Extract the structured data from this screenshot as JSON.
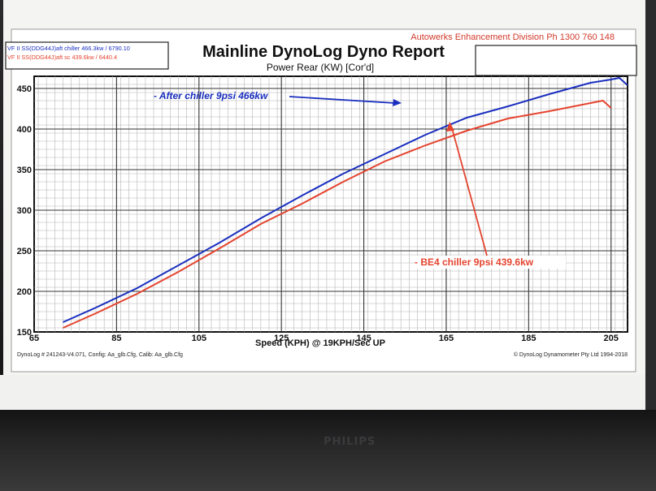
{
  "header": {
    "company": "Autowerks Enhancement Division  Ph 1300 760 148",
    "title": "Mainline DynoLog Dyno Report",
    "subtitle": "Power Rear (KW) [Cor'd]"
  },
  "legend_box": [
    {
      "text": "VF II SS(DDG44J)aft chiller 466.3kw / 6790.10",
      "color": "#1a2fbf"
    },
    {
      "text": "VF II SS(DDG44J)aft sc 439.6kw / 6440.4",
      "color": "#e4442f"
    }
  ],
  "footer": {
    "left": "DynoLog # 241243-V4.071, Config: Aa_glb.Cfg, Calib: Aa_glb.Cfg",
    "right": "© DynoLog Dynamometer Pty Ltd 1994-2018"
  },
  "monitor": {
    "brand": "PHILIPS"
  },
  "chart_data": {
    "type": "line",
    "title": "Mainline DynoLog Dyno Report",
    "subtitle": "Power Rear (KW) [Cor'd]",
    "xlabel": "Speed (KPH) @ 19KPH/Sec UP",
    "ylabel": "",
    "xlim": [
      65,
      209
    ],
    "ylim": [
      150,
      465
    ],
    "xticks": [
      "65",
      "85",
      "105",
      "125",
      "145",
      "165",
      "185",
      "205"
    ],
    "yticks": [
      "150",
      "200",
      "250",
      "300",
      "350",
      "400",
      "450"
    ],
    "grid": true,
    "series": [
      {
        "name": "VF II SS(DDG44J)aft chiller 466.3kw / 6790.10",
        "color": "#1a2fbf",
        "x": [
          72,
          80,
          90,
          100,
          110,
          120,
          130,
          140,
          150,
          160,
          170,
          180,
          190,
          200,
          205,
          207,
          209
        ],
        "y": [
          162,
          180,
          204,
          232,
          260,
          290,
          318,
          345,
          369,
          393,
          414,
          428,
          443,
          457,
          461,
          463,
          454
        ]
      },
      {
        "name": "VF II SS(DDG44J)aft sc 439.6kw / 6440.4",
        "color": "#e4442f",
        "x": [
          72,
          80,
          90,
          100,
          110,
          120,
          130,
          140,
          150,
          160,
          170,
          180,
          190,
          200,
          203,
          205
        ],
        "y": [
          155,
          173,
          197,
          224,
          253,
          283,
          308,
          335,
          360,
          380,
          398,
          413,
          422,
          432,
          435,
          426
        ]
      }
    ],
    "annotations": [
      {
        "text": "- After chiller 9psi 466kw",
        "color": "#1a2fbf"
      },
      {
        "text": "- BE4 chiller 9psi 439.6kw",
        "color": "#e4442f"
      }
    ]
  }
}
